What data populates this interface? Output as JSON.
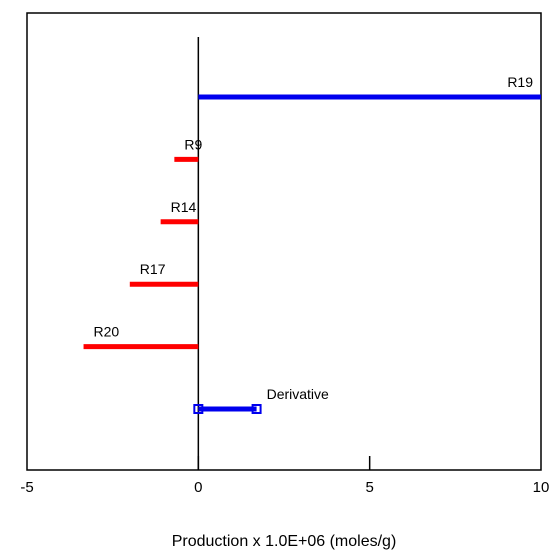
{
  "chart_data": {
    "type": "bar",
    "orientation": "horizontal",
    "title": "",
    "xlabel": "Production x 1.0E+06 (moles/g)",
    "ylabel": "",
    "xlim": [
      -5,
      10
    ],
    "xticks": [
      -5,
      0,
      5,
      10
    ],
    "grid": false,
    "legend": "none",
    "bars": [
      {
        "label": "R19",
        "value": 10.0,
        "color": "#0000ee"
      },
      {
        "label": "R9",
        "value": -0.7,
        "color": "#ff0000"
      },
      {
        "label": "R14",
        "value": -1.1,
        "color": "#ff0000"
      },
      {
        "label": "R17",
        "value": -2.0,
        "color": "#ff0000"
      },
      {
        "label": "R20",
        "value": -3.35,
        "color": "#ff0000"
      },
      {
        "label": "Derivative",
        "value": 1.7,
        "color": "#0000ee",
        "markers": true
      }
    ]
  }
}
